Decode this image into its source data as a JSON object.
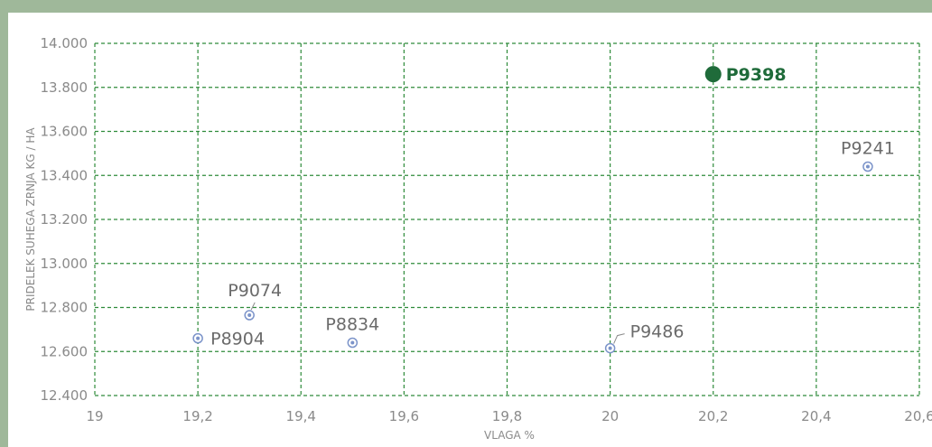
{
  "chart_data": {
    "type": "scatter",
    "title": "",
    "xlabel": "VLAGA %",
    "ylabel": "PRIDELEK SUHEGA ZRNJA KG / HA",
    "xlim": [
      19,
      20.6
    ],
    "ylim": [
      12400,
      14000
    ],
    "x_ticks": [
      "19",
      "19,2",
      "19,4",
      "19,6",
      "19,8",
      "20",
      "20,2",
      "20,4",
      "20,6"
    ],
    "y_ticks": [
      "12.400",
      "12.600",
      "12.800",
      "13.000",
      "13.200",
      "13.400",
      "13.600",
      "13.800",
      "14.000"
    ],
    "grid": true,
    "points": [
      {
        "label": "P9398",
        "x": 20.2,
        "y": 13860,
        "highlight": true
      },
      {
        "label": "P9241",
        "x": 20.5,
        "y": 13440,
        "highlight": false
      },
      {
        "label": "P9074",
        "x": 19.3,
        "y": 12765,
        "highlight": false
      },
      {
        "label": "P8904",
        "x": 19.2,
        "y": 12660,
        "highlight": false
      },
      {
        "label": "P8834",
        "x": 19.5,
        "y": 12640,
        "highlight": false
      },
      {
        "label": "P9486",
        "x": 20.0,
        "y": 12615,
        "highlight": false
      }
    ],
    "colors": {
      "highlight": "#1f6b3a",
      "marker": "#7b93c9",
      "grid": "#2e8b3a",
      "frame": "#9fb89a"
    }
  }
}
